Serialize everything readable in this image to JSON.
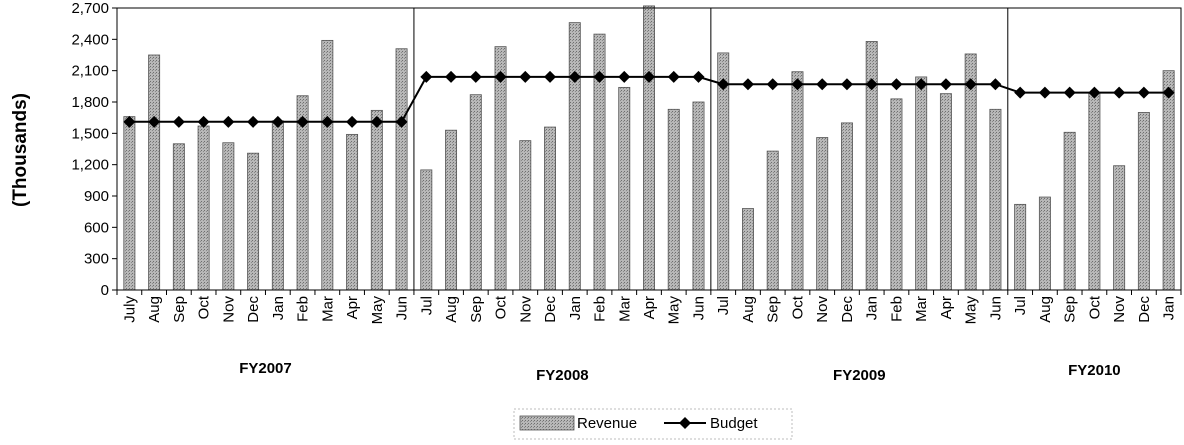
{
  "chart_data": {
    "type": "bar",
    "ylabel": "(Thousands)",
    "ylim": [
      0,
      2700
    ],
    "yticks": [
      "0",
      "300",
      "600",
      "900",
      "1,200",
      "1,500",
      "1,800",
      "2,100",
      "2,400",
      "2,700"
    ],
    "yticks_values": [
      0,
      300,
      600,
      900,
      1200,
      1500,
      1800,
      2100,
      2400,
      2700
    ],
    "categories": [
      "July",
      "Aug",
      "Sep",
      "Oct",
      "Nov",
      "Dec",
      "Jan",
      "Feb",
      "Mar",
      "Apr",
      "May",
      "Jun",
      "Jul",
      "Aug",
      "Sep",
      "Oct",
      "Nov",
      "Dec",
      "Jan",
      "Feb",
      "Mar",
      "Apr",
      "May",
      "Jun",
      "Jul",
      "Aug",
      "Sep",
      "Oct",
      "Nov",
      "Dec",
      "Jan",
      "Feb",
      "Mar",
      "Apr",
      "May",
      "Jun",
      "Jul",
      "Aug",
      "Sep",
      "Oct",
      "Nov",
      "Dec",
      "Jan"
    ],
    "groups": [
      {
        "label": "FY2007",
        "start": 0,
        "count": 12
      },
      {
        "label": "FY2008",
        "start": 12,
        "count": 12
      },
      {
        "label": "FY2009",
        "start": 24,
        "count": 12
      },
      {
        "label": "FY2010",
        "start": 36,
        "count": 7
      }
    ],
    "series": [
      {
        "name": "Revenue",
        "type": "bar",
        "values": [
          1660,
          2250,
          1400,
          1570,
          1410,
          1310,
          1620,
          1860,
          2390,
          1490,
          1720,
          2310,
          1150,
          1530,
          1870,
          2330,
          1430,
          1560,
          2560,
          2450,
          1940,
          2720,
          1730,
          1800,
          2270,
          780,
          1330,
          2090,
          1460,
          1600,
          2380,
          1830,
          2040,
          1880,
          2260,
          1730,
          820,
          890,
          1510,
          1890,
          1190,
          1700,
          2100
        ]
      },
      {
        "name": "Budget",
        "type": "line",
        "values": [
          1610,
          1610,
          1610,
          1610,
          1610,
          1610,
          1610,
          1610,
          1610,
          1610,
          1610,
          1610,
          2040,
          2040,
          2040,
          2040,
          2040,
          2040,
          2040,
          2040,
          2040,
          2040,
          2040,
          2040,
          1970,
          1970,
          1970,
          1970,
          1970,
          1970,
          1970,
          1970,
          1970,
          1970,
          1970,
          1970,
          1890,
          1890,
          1890,
          1890,
          1890,
          1890,
          1890
        ]
      }
    ],
    "legend": {
      "position": "bottom",
      "items": [
        "Revenue",
        "Budget"
      ]
    },
    "grid": false,
    "colors": {
      "bar": "#9a9a9a",
      "line": "#000000"
    }
  }
}
